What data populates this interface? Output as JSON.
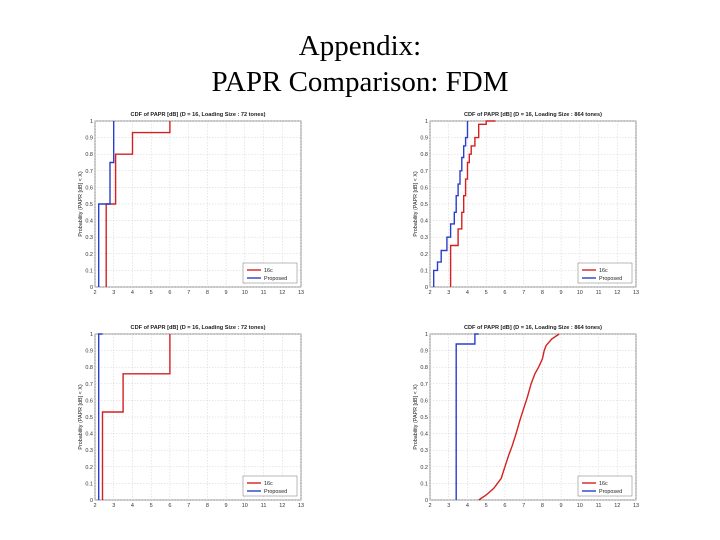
{
  "title": {
    "line1": "Appendix:",
    "line2": "PAPR Comparison: FDM"
  },
  "chart_data": [
    {
      "type": "line",
      "title": "CDF of PAPR [dB] (D = 16, Loading Size : 72 tones)",
      "xlabel": "PAPR [dB]",
      "ylabel": "Probability (PAPR [dB] < X)",
      "xlim": [
        2,
        13
      ],
      "ylim": [
        0,
        1
      ],
      "grid": true,
      "legend": "bottom-right",
      "xticks": [
        "2",
        "3",
        "4",
        "5",
        "6",
        "7",
        "8",
        "9",
        "10",
        "11",
        "12",
        "13"
      ],
      "yticks": [
        "0",
        "0.1",
        "0.2",
        "0.3",
        "0.4",
        "0.5",
        "0.6",
        "0.7",
        "0.8",
        "0.9",
        "1"
      ],
      "series": [
        {
          "name": "16c",
          "color": "#d42020",
          "x": [
            2.6,
            2.6,
            3.1,
            3.1,
            4.0,
            4.0,
            6.0,
            6.0
          ],
          "y": [
            0,
            0.5,
            0.5,
            0.8,
            0.8,
            0.93,
            0.93,
            1.0
          ]
        },
        {
          "name": "Proposed",
          "color": "#2a3ecc",
          "x": [
            2.2,
            2.2,
            2.8,
            2.8,
            3.0,
            3.0
          ],
          "y": [
            0,
            0.5,
            0.5,
            0.75,
            0.75,
            1.0
          ]
        }
      ]
    },
    {
      "type": "line",
      "title": "CDF of PAPR [dB] (D = 16, Loading Size : 864 tones)",
      "xlabel": "PAPR [dB]",
      "ylabel": "Probability (PAPR [dB] < X)",
      "xlim": [
        2,
        13
      ],
      "ylim": [
        0,
        1
      ],
      "grid": true,
      "legend": "bottom-right",
      "xticks": [
        "2",
        "3",
        "4",
        "5",
        "6",
        "7",
        "8",
        "9",
        "10",
        "11",
        "12",
        "13"
      ],
      "yticks": [
        "0",
        "0.1",
        "0.2",
        "0.3",
        "0.4",
        "0.5",
        "0.6",
        "0.7",
        "0.8",
        "0.9",
        "1"
      ],
      "series": [
        {
          "name": "16c",
          "color": "#d42020",
          "x": [
            3.1,
            3.1,
            3.5,
            3.5,
            3.7,
            3.7,
            3.8,
            3.8,
            3.9,
            3.9,
            4.0,
            4.0,
            4.1,
            4.1,
            4.2,
            4.2,
            4.4,
            4.4,
            4.6,
            4.6,
            5.0,
            5.0,
            5.5
          ],
          "y": [
            0,
            0.25,
            0.25,
            0.35,
            0.35,
            0.45,
            0.45,
            0.55,
            0.55,
            0.65,
            0.65,
            0.75,
            0.75,
            0.8,
            0.8,
            0.85,
            0.85,
            0.9,
            0.9,
            0.98,
            0.98,
            1.0,
            1.0
          ]
        },
        {
          "name": "Proposed",
          "color": "#2a3ecc",
          "x": [
            2.2,
            2.2,
            2.4,
            2.4,
            2.6,
            2.6,
            2.9,
            2.9,
            3.1,
            3.1,
            3.3,
            3.3,
            3.4,
            3.4,
            3.5,
            3.5,
            3.6,
            3.6,
            3.7,
            3.7,
            3.8,
            3.8,
            3.9,
            3.9,
            4.0,
            4.0
          ],
          "y": [
            0,
            0.1,
            0.1,
            0.15,
            0.15,
            0.22,
            0.22,
            0.3,
            0.3,
            0.38,
            0.38,
            0.45,
            0.45,
            0.55,
            0.55,
            0.62,
            0.62,
            0.7,
            0.7,
            0.78,
            0.78,
            0.85,
            0.85,
            0.9,
            0.9,
            1.0
          ]
        }
      ]
    },
    {
      "type": "line",
      "title": "CDF of PAPR [dB] (D = 16, Loading Size : 72 tones)",
      "xlabel": "PAPR [dB]",
      "ylabel": "Probability (PAPR [dB] < X)",
      "xlim": [
        2,
        13
      ],
      "ylim": [
        0,
        1
      ],
      "grid": true,
      "legend": "bottom-right",
      "xticks": [
        "2",
        "3",
        "4",
        "5",
        "6",
        "7",
        "8",
        "9",
        "10",
        "11",
        "12",
        "13"
      ],
      "yticks": [
        "0",
        "0.1",
        "0.2",
        "0.3",
        "0.4",
        "0.5",
        "0.6",
        "0.7",
        "0.8",
        "0.9",
        "1"
      ],
      "series": [
        {
          "name": "16c",
          "color": "#d42020",
          "x": [
            2.4,
            2.4,
            3.5,
            3.5,
            6.0,
            6.0
          ],
          "y": [
            0,
            0.53,
            0.53,
            0.76,
            0.76,
            1.0
          ]
        },
        {
          "name": "Proposed",
          "color": "#2a3ecc",
          "x": [
            2.2,
            2.2,
            2.4
          ],
          "y": [
            0,
            1.0,
            1.0
          ]
        }
      ]
    },
    {
      "type": "line",
      "title": "CDF of PAPR [dB] (D = 16, Loading Size : 864 tones)",
      "xlabel": "PAPR [dB]",
      "ylabel": "Probability (PAPR [dB] < X)",
      "xlim": [
        2,
        13
      ],
      "ylim": [
        0,
        1
      ],
      "grid": true,
      "legend": "bottom-right",
      "xticks": [
        "2",
        "3",
        "4",
        "5",
        "6",
        "7",
        "8",
        "9",
        "10",
        "11",
        "12",
        "13"
      ],
      "yticks": [
        "0",
        "0.1",
        "0.2",
        "0.3",
        "0.4",
        "0.5",
        "0.6",
        "0.7",
        "0.8",
        "0.9",
        "1"
      ],
      "series": [
        {
          "name": "16c",
          "color": "#d42020",
          "x": [
            4.6,
            5.0,
            5.4,
            5.8,
            6.0,
            6.2,
            6.4,
            6.6,
            6.8,
            7.0,
            7.2,
            7.4,
            7.6,
            7.8,
            8.0,
            8.1,
            8.2,
            8.5,
            8.9
          ],
          "y": [
            0,
            0.03,
            0.07,
            0.13,
            0.2,
            0.27,
            0.33,
            0.4,
            0.48,
            0.55,
            0.62,
            0.7,
            0.76,
            0.8,
            0.85,
            0.9,
            0.93,
            0.97,
            1.0
          ]
        },
        {
          "name": "Proposed",
          "color": "#2a3ecc",
          "x": [
            3.4,
            3.4,
            4.4,
            4.4,
            4.6
          ],
          "y": [
            0,
            0.94,
            0.94,
            1.0,
            1.0
          ]
        }
      ]
    }
  ]
}
